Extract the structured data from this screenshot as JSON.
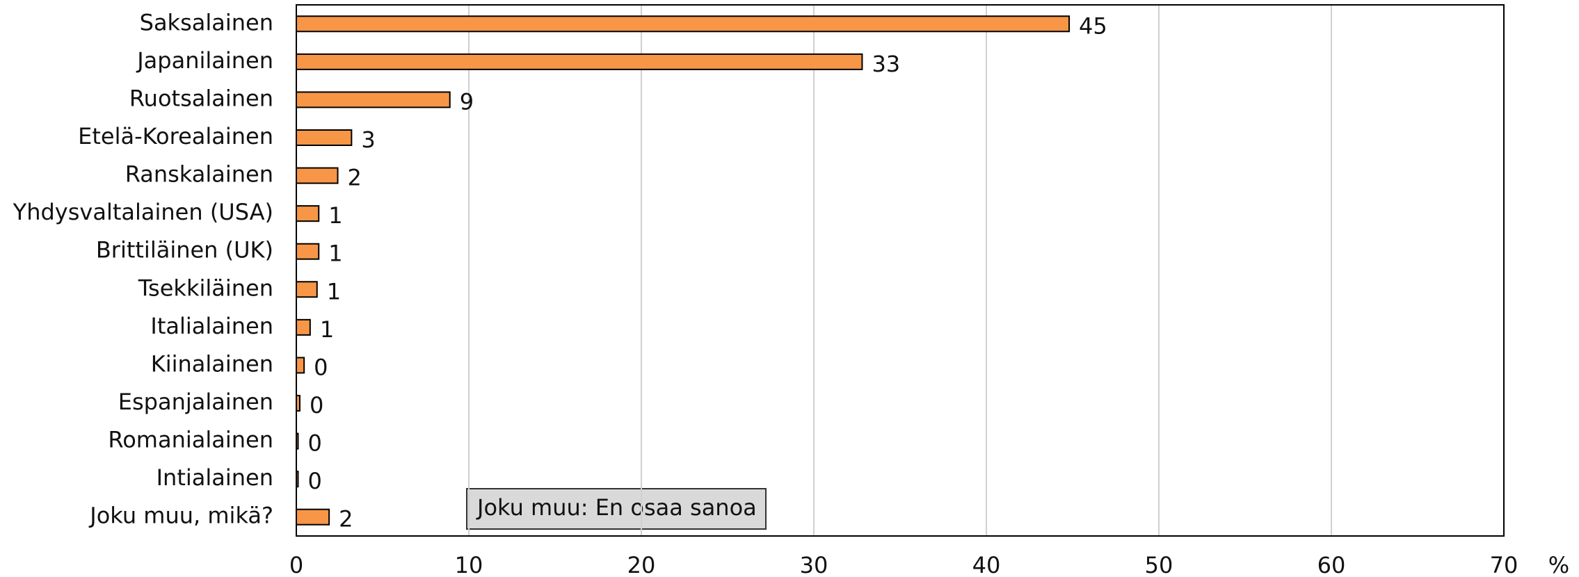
{
  "chart_data": {
    "type": "bar",
    "orientation": "horizontal",
    "categories": [
      "Saksalainen",
      "Japanilainen",
      "Ruotsalainen",
      "Etelä-Korealainen",
      "Ranskalainen",
      "Yhdysvaltalainen (USA)",
      "Brittiläinen (UK)",
      "Tsekkiläinen",
      "Italialainen",
      "Kiinalainen",
      "Espanjalainen",
      "Romanialainen",
      "Intialainen",
      "Joku muu, mikä?"
    ],
    "values": [
      44.8,
      32.8,
      8.9,
      3.2,
      2.4,
      1.3,
      1.3,
      1.2,
      0.8,
      0.45,
      0.2,
      0.1,
      0.1,
      1.9
    ],
    "value_labels": [
      "45",
      "33",
      "9",
      "3",
      "2",
      "1",
      "1",
      "1",
      "1",
      "0",
      "0",
      "0",
      "0",
      "2"
    ],
    "color": "#f79646",
    "xlim": [
      0,
      70
    ],
    "xticks": [
      0,
      10,
      20,
      30,
      40,
      50,
      60,
      70
    ],
    "grid": true,
    "xlabel": "%",
    "annotation": "Joku muu: En osaa sanoa"
  }
}
